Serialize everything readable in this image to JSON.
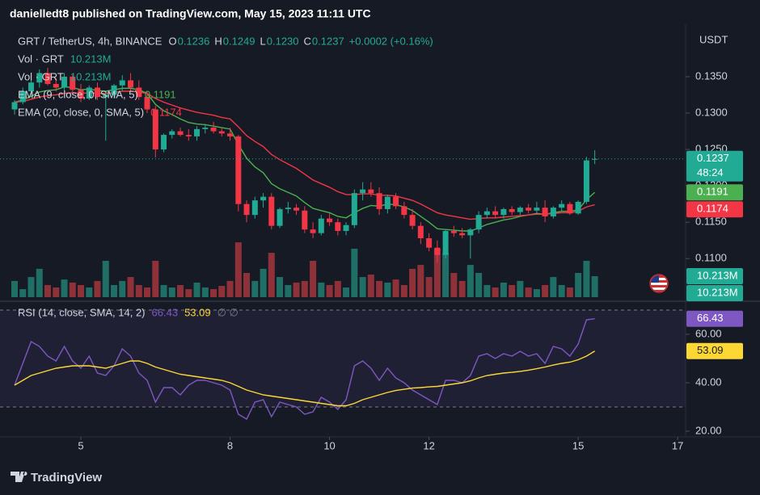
{
  "header": "danielledt8 published on TradingView.com, May 15, 2023 11:11 UTC",
  "footer": "TradingView",
  "chart_data": [
    {
      "type": "candlestick",
      "title": "GRT / TetherUS, 4h, BINANCE",
      "ohlc": [
        {
          "label": "O",
          "value": "0.1236"
        },
        {
          "label": "H",
          "value": "0.1249"
        },
        {
          "label": "L",
          "value": "0.1230"
        },
        {
          "label": "C",
          "value": "0.1237"
        }
      ],
      "change": "+0.0002 (+0.16%)",
      "currency": "USDT",
      "x": [
        3.667,
        3.833,
        4,
        4.167,
        4.333,
        4.5,
        4.667,
        4.833,
        5,
        5.167,
        5.333,
        5.5,
        5.667,
        5.833,
        6,
        6.167,
        6.333,
        6.5,
        6.667,
        6.833,
        7,
        7.167,
        7.333,
        7.5,
        7.667,
        7.833,
        8,
        8.167,
        8.333,
        8.5,
        8.667,
        8.833,
        9,
        9.167,
        9.333,
        9.5,
        9.667,
        9.833,
        10,
        10.167,
        10.333,
        10.5,
        10.667,
        10.833,
        11,
        11.167,
        11.333,
        11.5,
        11.667,
        11.833,
        12,
        12.167,
        12.333,
        12.5,
        12.667,
        12.833,
        13,
        13.167,
        13.333,
        13.5,
        13.667,
        13.833,
        14,
        14.167,
        14.333,
        14.5,
        14.667,
        14.833,
        15,
        15.167,
        15.333
      ],
      "open": [
        0.1305,
        0.1315,
        0.133,
        0.1342,
        0.1355,
        0.134,
        0.1335,
        0.135,
        0.1332,
        0.132,
        0.1335,
        0.1322,
        0.1325,
        0.1338,
        0.1345,
        0.1335,
        0.1322,
        0.1305,
        0.125,
        0.127,
        0.1275,
        0.127,
        0.1268,
        0.1278,
        0.128,
        0.1275,
        0.1272,
        0.1268,
        0.1175,
        0.116,
        0.118,
        0.1185,
        0.1145,
        0.1168,
        0.117,
        0.1166,
        0.114,
        0.1135,
        0.1155,
        0.115,
        0.1138,
        0.1146,
        0.119,
        0.1195,
        0.119,
        0.1168,
        0.1185,
        0.1172,
        0.116,
        0.1145,
        0.1128,
        0.1115,
        0.1105,
        0.1138,
        0.1135,
        0.1132,
        0.114,
        0.116,
        0.1165,
        0.116,
        0.1168,
        0.1164,
        0.117,
        0.1166,
        0.117,
        0.1158,
        0.117,
        0.1175,
        0.1162,
        0.1178,
        0.1236
      ],
      "high": [
        0.1318,
        0.1335,
        0.1345,
        0.136,
        0.1362,
        0.1348,
        0.1355,
        0.1352,
        0.134,
        0.1338,
        0.1342,
        0.133,
        0.134,
        0.1352,
        0.1355,
        0.1345,
        0.133,
        0.131,
        0.1272,
        0.1278,
        0.128,
        0.1278,
        0.1282,
        0.1285,
        0.1288,
        0.128,
        0.128,
        0.127,
        0.118,
        0.1185,
        0.119,
        0.119,
        0.117,
        0.1178,
        0.1175,
        0.1172,
        0.115,
        0.116,
        0.1162,
        0.1155,
        0.115,
        0.1195,
        0.1205,
        0.1205,
        0.1198,
        0.1188,
        0.119,
        0.1178,
        0.1168,
        0.115,
        0.1135,
        0.1125,
        0.114,
        0.1145,
        0.1142,
        0.1142,
        0.1165,
        0.117,
        0.1172,
        0.117,
        0.1172,
        0.1172,
        0.1175,
        0.1178,
        0.118,
        0.1172,
        0.118,
        0.1178,
        0.118,
        0.124,
        0.1249
      ],
      "low": [
        0.1298,
        0.1312,
        0.1325,
        0.1335,
        0.1338,
        0.133,
        0.133,
        0.1328,
        0.1315,
        0.1318,
        0.1318,
        0.1262,
        0.132,
        0.133,
        0.133,
        0.1318,
        0.13,
        0.1239,
        0.1246,
        0.1265,
        0.1268,
        0.1262,
        0.1262,
        0.1272,
        0.1272,
        0.1268,
        0.1262,
        0.1165,
        0.115,
        0.1155,
        0.117,
        0.114,
        0.1142,
        0.1162,
        0.116,
        0.1135,
        0.1128,
        0.1132,
        0.1145,
        0.1132,
        0.1132,
        0.1142,
        0.118,
        0.1185,
        0.116,
        0.1162,
        0.1168,
        0.1155,
        0.114,
        0.112,
        0.111,
        0.1095,
        0.11,
        0.113,
        0.1128,
        0.11,
        0.1135,
        0.1155,
        0.1155,
        0.1155,
        0.116,
        0.116,
        0.1162,
        0.1162,
        0.115,
        0.1155,
        0.1165,
        0.116,
        0.116,
        0.1175,
        0.123
      ],
      "close": [
        0.1315,
        0.133,
        0.1342,
        0.1355,
        0.134,
        0.1335,
        0.135,
        0.1332,
        0.132,
        0.1335,
        0.1322,
        0.1325,
        0.1338,
        0.1345,
        0.1335,
        0.1322,
        0.1305,
        0.125,
        0.127,
        0.1275,
        0.127,
        0.1268,
        0.1278,
        0.128,
        0.1275,
        0.1272,
        0.1268,
        0.1175,
        0.116,
        0.118,
        0.1185,
        0.1145,
        0.1168,
        0.117,
        0.1166,
        0.114,
        0.1135,
        0.1155,
        0.115,
        0.1138,
        0.1146,
        0.119,
        0.1195,
        0.119,
        0.1168,
        0.1185,
        0.1172,
        0.116,
        0.1145,
        0.1128,
        0.1115,
        0.1105,
        0.1138,
        0.1135,
        0.1132,
        0.114,
        0.116,
        0.1165,
        0.116,
        0.1168,
        0.1164,
        0.117,
        0.1166,
        0.117,
        0.1158,
        0.117,
        0.1175,
        0.1162,
        0.1178,
        0.1235,
        0.1237
      ],
      "volume": [
        7.9,
        3.9,
        9.8,
        13.8,
        5.9,
        4.7,
        8.6,
        7.1,
        5.9,
        4.7,
        7.9,
        17.7,
        5.9,
        7.9,
        9.8,
        5.9,
        4.7,
        17.7,
        5.9,
        4.7,
        5.9,
        3.9,
        7.1,
        4.7,
        3.9,
        5.5,
        7.9,
        26.7,
        11.8,
        7.9,
        13.8,
        21.6,
        9.8,
        5.9,
        7.1,
        7.9,
        17.7,
        7.1,
        5.9,
        7.9,
        4.7,
        23.6,
        9.8,
        11,
        7.9,
        7.1,
        8.6,
        5.9,
        13.8,
        15.7,
        9.8,
        23.6,
        21.6,
        11.8,
        7.9,
        15.7,
        11.8,
        5.9,
        4.7,
        7.1,
        5.9,
        7.9,
        4.7,
        3.9,
        5.9,
        9.8,
        5.9,
        4.7,
        11.8,
        17.7,
        10.213
      ],
      "volume_ylim": [
        0,
        129
      ],
      "volume_legend": [
        {
          "name": "Vol · GRT",
          "value_label": "10.213M"
        },
        {
          "name": "Vol · GRT",
          "value_label": "10.213M"
        }
      ],
      "series": [
        {
          "name": "EMA (9, close, 0, SMA, 5)",
          "color": "#4caf50",
          "value_label": "0.1191",
          "values": [
            0.1315,
            0.1318,
            0.1323,
            0.1329,
            0.1331,
            0.1332,
            0.1336,
            0.1335,
            0.1332,
            0.1333,
            0.1331,
            0.133,
            0.1332,
            0.1334,
            0.1334,
            0.1332,
            0.1327,
            0.1312,
            0.1303,
            0.1298,
            0.1292,
            0.1287,
            0.1285,
            0.1284,
            0.1282,
            0.128,
            0.1278,
            0.1257,
            0.1238,
            0.1226,
            0.1218,
            0.1203,
            0.1196,
            0.1191,
            0.1186,
            0.1177,
            0.1169,
            0.1166,
            0.1163,
            0.1158,
            0.1156,
            0.1163,
            0.1169,
            0.1173,
            0.1172,
            0.1175,
            0.1174,
            0.1171,
            0.1166,
            0.1158,
            0.115,
            0.1141,
            0.114,
            0.1139,
            0.1138,
            0.1138,
            0.1142,
            0.1147,
            0.115,
            0.1153,
            0.1155,
            0.1158,
            0.116,
            0.1162,
            0.1161,
            0.1163,
            0.1165,
            0.1165,
            0.1167,
            0.1181,
            0.1191
          ]
        },
        {
          "name": "EMA (20, close, 0, SMA, 5)",
          "color": "#f23645",
          "value_label": "0.1174",
          "values": [
            0.1315,
            0.1316,
            0.1319,
            0.1322,
            0.1324,
            0.1325,
            0.1327,
            0.1328,
            0.1327,
            0.1328,
            0.1327,
            0.1327,
            0.1328,
            0.133,
            0.133,
            0.1329,
            0.1327,
            0.132,
            0.1315,
            0.1311,
            0.1307,
            0.1304,
            0.1301,
            0.1299,
            0.1297,
            0.1294,
            0.1292,
            0.1281,
            0.1269,
            0.1261,
            0.1254,
            0.1243,
            0.1236,
            0.123,
            0.1224,
            0.1216,
            0.1208,
            0.1203,
            0.1198,
            0.1192,
            0.1188,
            0.1188,
            0.1189,
            0.1189,
            0.1187,
            0.1187,
            0.1186,
            0.1183,
            0.118,
            0.1175,
            0.1169,
            0.1163,
            0.116,
            0.1158,
            0.1156,
            0.1154,
            0.1155,
            0.1156,
            0.1156,
            0.1157,
            0.1158,
            0.1159,
            0.116,
            0.1161,
            0.1161,
            0.1162,
            0.1163,
            0.1163,
            0.1165,
            0.1171,
            0.1174
          ]
        }
      ],
      "price_labels": [
        {
          "value": 0.1237,
          "label": "0.1237",
          "sub": "48:24",
          "color": "#22ab94"
        },
        {
          "value": 0.1191,
          "label": "0.1191",
          "color": "#4caf50"
        },
        {
          "value": 0.1174,
          "label": "0.1174",
          "color": "#f23645"
        }
      ],
      "up_color": "#22ab94",
      "down_color": "#f23645",
      "volume_up_color": "#1f6f67",
      "volume_down_color": "#8f3139",
      "xlim": [
        3.374,
        17.16
      ],
      "xticks": [
        5,
        8,
        10,
        12,
        15,
        17
      ],
      "ylim": [
        0.1047,
        0.1411
      ],
      "yticks": [
        {
          "value": 0.135,
          "label": "0.1350"
        },
        {
          "value": 0.13,
          "label": "0.1300"
        },
        {
          "value": 0.125,
          "label": "0.1250"
        },
        {
          "value": 0.12,
          "label": "0.1200"
        },
        {
          "value": 0.115,
          "label": "0.1150"
        },
        {
          "value": 0.11,
          "label": "0.1100"
        }
      ],
      "grid": false
    },
    {
      "type": "line",
      "title": "RSI (14, close, SMA, 14, 2)",
      "extra": "∅ ∅",
      "series": [
        {
          "color": "#7e57c2",
          "value_label": "66.43",
          "values": [
            39,
            48,
            57,
            55,
            51,
            49,
            55,
            49,
            46,
            51,
            44,
            43,
            47,
            54,
            51,
            44,
            41,
            32,
            38,
            38,
            35,
            39,
            41,
            41,
            40,
            39,
            37,
            27,
            25,
            32,
            33,
            26,
            32,
            31,
            30,
            27,
            28,
            34,
            32,
            29,
            33,
            47,
            49,
            46,
            41,
            46,
            42,
            40,
            37,
            35,
            33,
            31,
            41,
            41,
            40,
            43,
            51,
            52,
            50,
            52,
            51,
            53,
            51,
            52,
            48,
            55,
            54,
            51,
            56,
            66,
            66.43
          ]
        },
        {
          "color": "#fdd835",
          "value_label": "53.09",
          "values": [
            39,
            41,
            43,
            44,
            45,
            46,
            46.5,
            47,
            47,
            47,
            46.5,
            46,
            47,
            48,
            49,
            49,
            48,
            46.5,
            45.5,
            44.5,
            43.5,
            43,
            42.5,
            42,
            41.5,
            41,
            40,
            38.5,
            37,
            36,
            35,
            34.5,
            34,
            33.5,
            33,
            32.5,
            32,
            31.5,
            31,
            30.5,
            30.5,
            31.5,
            33,
            34,
            35,
            36,
            36.8,
            37.3,
            37.8,
            38,
            38.3,
            38.5,
            39,
            39.5,
            40,
            40.8,
            42,
            43,
            43.5,
            44,
            44.3,
            44.7,
            45.2,
            45.8,
            46.5,
            47.3,
            48,
            48.5,
            49.5,
            51,
            53.09
          ]
        }
      ],
      "bands": [
        70,
        30
      ],
      "band_color": "#7e57c2",
      "ylim": [
        18,
        72
      ],
      "yticks": [
        {
          "value": 60,
          "label": "60.00"
        },
        {
          "value": 40,
          "label": "40.00"
        },
        {
          "value": 20,
          "label": "20.00"
        }
      ],
      "grid": false
    }
  ]
}
